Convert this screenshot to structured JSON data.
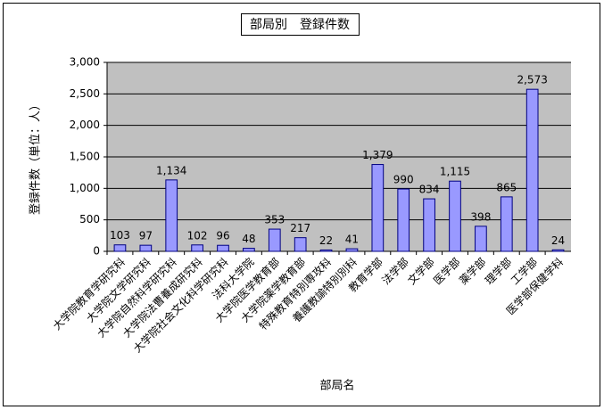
{
  "chart_data": {
    "type": "bar",
    "title": "部局別　登録件数",
    "x_label": "部局名",
    "y_label": "登録件数（単位：人）",
    "categories": [
      "大学院教育学研究科",
      "大学院文学研究科",
      "大学院自然科学研究科",
      "大学院法曹養成研究科",
      "大学院社会文化科学研究科",
      "法科大学院",
      "大学院医学教育部",
      "大学院薬学教育部",
      "特殊教育特別専攻科",
      "養護教諭特別別科",
      "教育学部",
      "法学部",
      "文学部",
      "医学部",
      "薬学部",
      "理学部",
      "工学部",
      "医学部保健学科"
    ],
    "values": [
      103,
      97,
      1134,
      102,
      96,
      48,
      353,
      217,
      22,
      41,
      1379,
      990,
      834,
      1115,
      398,
      865,
      2573,
      24
    ],
    "value_labels": [
      "103",
      "97",
      "1,134",
      "102",
      "96",
      "48",
      "353",
      "217",
      "22",
      "41",
      "1,379",
      "990",
      "834",
      "1,115",
      "398",
      "865",
      "2,573",
      "24"
    ],
    "color": "#9999ff",
    "ylim": [
      0,
      3000
    ],
    "yticks": [
      0,
      500,
      {
        "value": 1000,
        "label": "1,000"
      },
      {
        "value": 1500,
        "label": "1,500"
      },
      {
        "value": 2000,
        "label": "2,000"
      },
      {
        "value": 2500,
        "label": "2,500"
      },
      {
        "value": 3000,
        "label": "3,000"
      }
    ],
    "grid": true
  }
}
